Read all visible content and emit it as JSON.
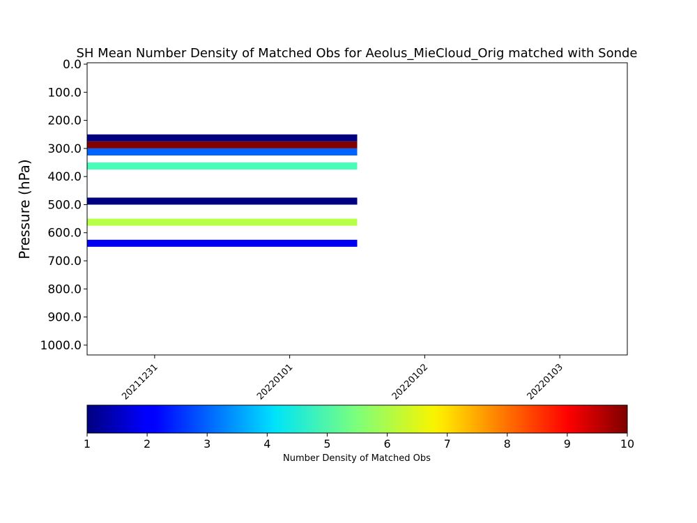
{
  "chart_data": {
    "type": "heatmap",
    "title": "SH Mean Number Density of Matched Obs for Aeolus_MieCloud_Orig matched with Sonde",
    "ylabel": "Pressure (hPa)",
    "xlabel": "",
    "y_inverted": true,
    "ylim": [
      1035,
      -5
    ],
    "y_ticks": [
      0.0,
      100.0,
      200.0,
      300.0,
      400.0,
      500.0,
      600.0,
      700.0,
      800.0,
      900.0,
      1000.0
    ],
    "y_tick_labels": [
      "0.0",
      "100.0",
      "200.0",
      "300.0",
      "400.0",
      "500.0",
      "600.0",
      "700.0",
      "800.0",
      "900.0",
      "1000.0"
    ],
    "x_ticks": [
      "20211231",
      "20220101",
      "20220102",
      "20220103"
    ],
    "x_tick_rotation_deg": 45,
    "x_range": [
      -0.5,
      3.5
    ],
    "cells": [
      {
        "x_start": -0.5,
        "x_end": 1.5,
        "p_top": 250,
        "p_bottom": 275,
        "value": 1
      },
      {
        "x_start": -0.5,
        "x_end": 1.5,
        "p_top": 275,
        "p_bottom": 300,
        "value": 10
      },
      {
        "x_start": -0.5,
        "x_end": 1.5,
        "p_top": 300,
        "p_bottom": 325,
        "value": 3
      },
      {
        "x_start": -0.5,
        "x_end": 1.5,
        "p_top": 350,
        "p_bottom": 375,
        "value": 5
      },
      {
        "x_start": -0.5,
        "x_end": 1.5,
        "p_top": 475,
        "p_bottom": 500,
        "value": 1
      },
      {
        "x_start": -0.5,
        "x_end": 1.5,
        "p_top": 550,
        "p_bottom": 575,
        "value": 6
      },
      {
        "x_start": -0.5,
        "x_end": 1.5,
        "p_top": 625,
        "p_bottom": 650,
        "value": 2
      }
    ],
    "colorbar": {
      "colormap": "jet",
      "min": 1,
      "max": 10,
      "ticks": [
        "1",
        "2",
        "3",
        "4",
        "5",
        "6",
        "7",
        "8",
        "9",
        "10"
      ],
      "label": "Number Density of Matched Obs"
    },
    "grid": false
  }
}
